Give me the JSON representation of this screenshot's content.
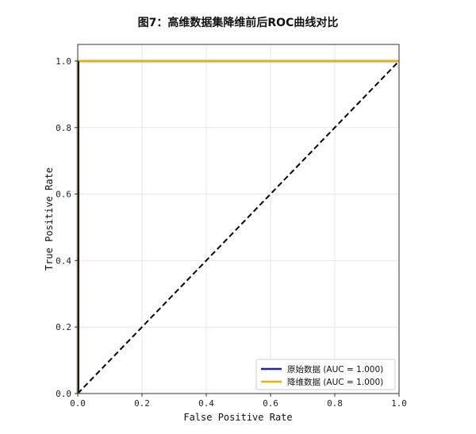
{
  "chart_data": {
    "type": "line",
    "title": "图7：高维数据集降维前后ROC曲线对比",
    "xlabel": "False Positive Rate",
    "ylabel": "True Positive Rate",
    "xlim": [
      0,
      1
    ],
    "ylim": [
      0,
      1.05
    ],
    "xticks": [
      "0.0",
      "0.2",
      "0.4",
      "0.6",
      "0.8",
      "1.0"
    ],
    "yticks": [
      "0.0",
      "0.2",
      "0.4",
      "0.6",
      "0.8",
      "1.0"
    ],
    "grid": true,
    "legend_position": "bottom-right",
    "series": [
      {
        "name": "原始数据 (AUC = 1.000)",
        "color": "#1f1fb4",
        "x": [
          0,
          0,
          1
        ],
        "y": [
          0,
          1,
          1
        ]
      },
      {
        "name": "降维数据 (AUC = 1.000)",
        "color": "#f0b000",
        "x": [
          0,
          0,
          1
        ],
        "y": [
          0,
          1,
          1
        ]
      }
    ],
    "reference_line": {
      "x": [
        0,
        1
      ],
      "y": [
        0,
        1
      ],
      "style": "dashed",
      "color": "#000000"
    }
  }
}
